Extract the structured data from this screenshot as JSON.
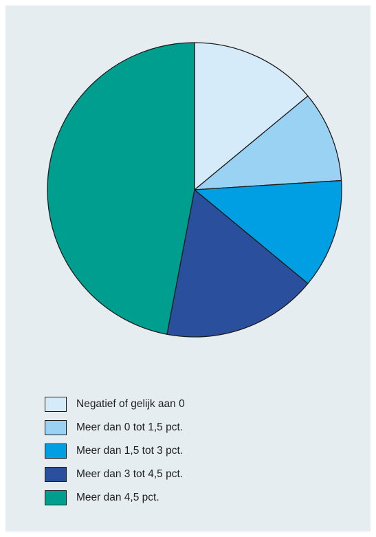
{
  "chart_data": {
    "type": "pie",
    "title": "",
    "unit": "pct.",
    "start_angle_deg": 0,
    "direction": "clockwise",
    "slices": [
      {
        "label": "Negatief of gelijk aan 0",
        "value": 14.0,
        "color": "#d6ebfa"
      },
      {
        "label": "Meer dan 0 tot 1,5 pct.",
        "value": 10.0,
        "color": "#9ad2f3"
      },
      {
        "label": "Meer dan 1,5 tot 3 pct.",
        "value": 12.0,
        "color": "#009fe3"
      },
      {
        "label": "Meer dan 3 tot 4,5 pct.",
        "value": 17.0,
        "color": "#2a4f9c"
      },
      {
        "label": "Meer dan 4,5 pct.",
        "value": 47.0,
        "color": "#009e8e"
      }
    ],
    "legend": {
      "position": "bottom-left",
      "entries": [
        "Negatief of gelijk aan 0",
        "Meer dan 0 tot 1,5 pct.",
        "Meer dan 1,5 tot 3 pct.",
        "Meer dan 3 tot 4,5 pct.",
        "Meer dan 4,5 pct."
      ]
    }
  },
  "colors": {
    "panel_background": "#e6edf1",
    "outline": "#1c1c1c"
  }
}
